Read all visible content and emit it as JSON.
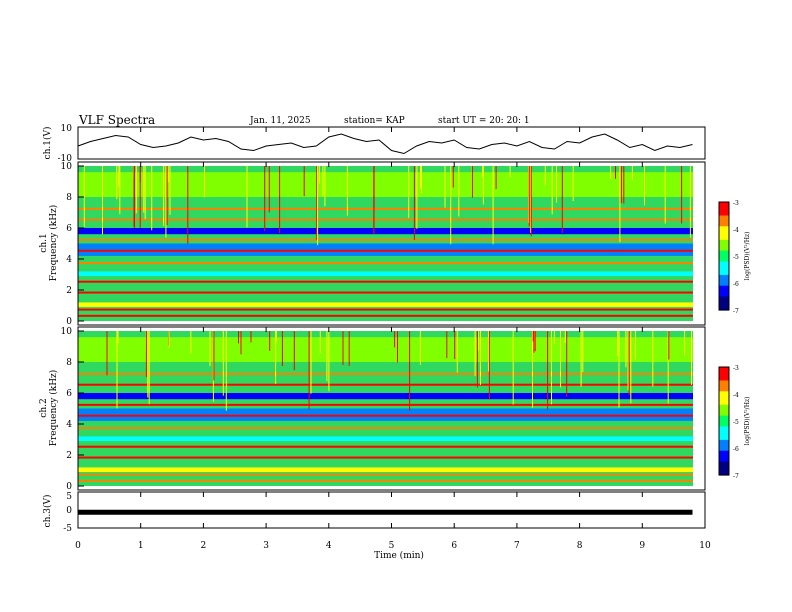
{
  "header": {
    "title": "VLF Spectra",
    "date": "Jan. 11, 2025",
    "station": "station= KAP",
    "start_time": "start UT =  20: 20: 1"
  },
  "chart_data": [
    {
      "type": "line",
      "name": "ch1-waveform",
      "ylabel": "ch.1(V)",
      "ylim": [
        -10,
        10
      ],
      "ytick_labels": [
        "10",
        "-10"
      ],
      "xlim": [
        0,
        10
      ],
      "x": [
        0.0,
        0.2,
        0.4,
        0.6,
        0.8,
        1.0,
        1.2,
        1.4,
        1.6,
        1.8,
        2.0,
        2.2,
        2.4,
        2.6,
        2.8,
        3.0,
        3.2,
        3.4,
        3.6,
        3.8,
        4.0,
        4.2,
        4.4,
        4.6,
        4.8,
        5.0,
        5.2,
        5.4,
        5.6,
        5.8,
        6.0,
        6.2,
        6.4,
        6.6,
        6.8,
        7.0,
        7.2,
        7.4,
        7.6,
        7.8,
        8.0,
        8.2,
        8.4,
        8.6,
        8.8,
        9.0,
        9.2,
        9.4,
        9.6,
        9.8
      ],
      "values": [
        -2,
        1,
        3,
        5,
        4,
        -1,
        -3,
        -2,
        0,
        4,
        2,
        3,
        1,
        -4,
        -5,
        -2,
        -1,
        0,
        -3,
        -2,
        4,
        6,
        3,
        1,
        2,
        -5,
        -7,
        -2,
        1,
        0,
        2,
        -3,
        -4,
        -1,
        0,
        -2,
        1,
        -3,
        -4,
        1,
        0,
        4,
        6,
        2,
        -3,
        -1,
        -5,
        -2,
        -3,
        -1
      ]
    },
    {
      "type": "heatmap",
      "name": "ch1-spectrogram",
      "ylabel": "Frequency (kHz)",
      "channel_label": "ch.1",
      "xlim": [
        0,
        10
      ],
      "ylim": [
        0,
        10
      ],
      "ytick_labels": [
        "0",
        "2",
        "4",
        "6",
        "8",
        "10"
      ],
      "colorbar": {
        "label": "log(PSD)(V²/Hz)",
        "range": [
          -7,
          -3
        ],
        "tick_labels": [
          "-3",
          "-4",
          "-5",
          "-6",
          "-7"
        ]
      }
    },
    {
      "type": "heatmap",
      "name": "ch2-spectrogram",
      "ylabel": "Frequency (kHz)",
      "channel_label": "ch.2",
      "xlim": [
        0,
        10
      ],
      "ylim": [
        0,
        10
      ],
      "ytick_labels": [
        "0",
        "2",
        "4",
        "6",
        "8",
        "10"
      ],
      "colorbar": {
        "label": "log(PSD)(V²/Hz)",
        "range": [
          -7,
          -3
        ],
        "tick_labels": [
          "-3",
          "-4",
          "-5",
          "-6",
          "-7"
        ]
      }
    },
    {
      "type": "line",
      "name": "ch3-signal",
      "ylabel": "ch.3(V)",
      "ylim": [
        -5,
        5
      ],
      "ytick_labels": [
        "5",
        "0",
        "-5"
      ],
      "xlim": [
        0,
        10
      ],
      "x": [
        0,
        9.8
      ],
      "values": [
        -0.8,
        -0.8
      ]
    }
  ],
  "xaxis": {
    "label": "Time (min)",
    "ticks": [
      "0",
      "1",
      "2",
      "3",
      "4",
      "5",
      "6",
      "7",
      "8",
      "9",
      "10"
    ]
  },
  "colors": {
    "colormap": [
      "#000080",
      "#0000ff",
      "#0080ff",
      "#00ffff",
      "#00ff60",
      "#80ff00",
      "#ffff00",
      "#ff8000",
      "#ff0000",
      "#ffffff"
    ]
  }
}
